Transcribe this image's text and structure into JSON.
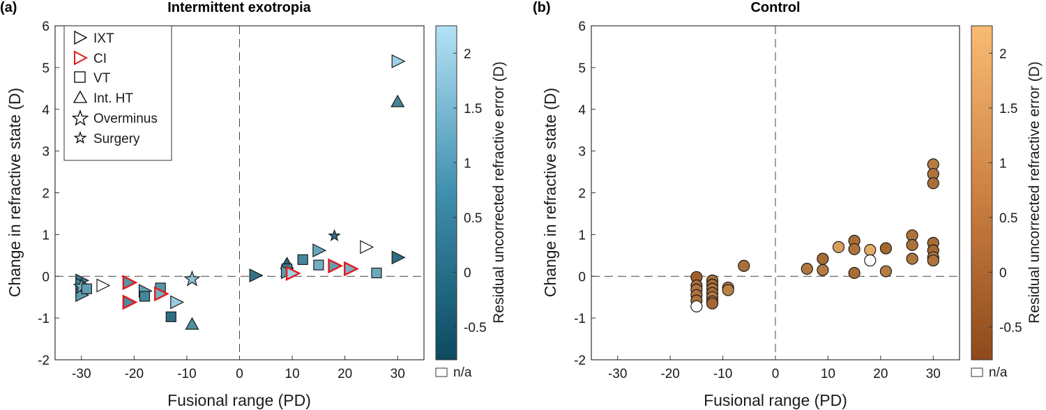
{
  "chart_data": [
    {
      "type": "scatter",
      "panel_label": "(a)",
      "title": "Intermittent exotropia",
      "xlabel": "Fusional range (PD)",
      "ylabel": "Change in refractive state (D)",
      "xlim": [
        -35,
        35
      ],
      "ylim": [
        -2,
        6
      ],
      "xticks": [
        -30,
        -20,
        -10,
        0,
        10,
        20,
        30
      ],
      "yticks": [
        -2,
        -1,
        0,
        1,
        2,
        3,
        4,
        5,
        6
      ],
      "colorbar": {
        "label": "Residual uncorrected refractive error (D)",
        "range": [
          -0.8,
          2.25
        ],
        "ticks": [
          -0.5,
          0,
          0.5,
          1,
          1.5,
          2
        ],
        "low_color": "#0c4a60",
        "high_color": "#b4e2f6",
        "na_label": "n/a"
      },
      "legend": {
        "position": "top-left",
        "entries": [
          {
            "label": "IXT",
            "marker": "triangle-right",
            "edge": "#000000"
          },
          {
            "label": "CI",
            "marker": "triangle-right",
            "edge": "#e31a1c"
          },
          {
            "label": "VT",
            "marker": "square",
            "edge": "#000000"
          },
          {
            "label": "Int. HT",
            "marker": "triangle-up",
            "edge": "#000000"
          },
          {
            "label": "Overminus",
            "marker": "star",
            "edge": "#000000"
          },
          {
            "label": "Surgery",
            "marker": "star-small",
            "edge": "#000000"
          }
        ]
      },
      "points": [
        {
          "x": -30,
          "y": -0.1,
          "marker": "tri",
          "c": 0.1
        },
        {
          "x": -30,
          "y": -0.2,
          "marker": "tri",
          "c": 0.3
        },
        {
          "x": -30,
          "y": -0.35,
          "marker": "tri",
          "c": 0.5
        },
        {
          "x": -30,
          "y": -0.45,
          "marker": "tri",
          "c": 0.8
        },
        {
          "x": -30,
          "y": -0.25,
          "marker": "star",
          "c": 1.3
        },
        {
          "x": -29,
          "y": -0.3,
          "marker": "sq",
          "c": 0.9
        },
        {
          "x": -26,
          "y": -0.22,
          "marker": "tri",
          "c": null
        },
        {
          "x": -21,
          "y": -0.15,
          "marker": "ci",
          "c": 0.7
        },
        {
          "x": -21,
          "y": -0.62,
          "marker": "ci",
          "c": 0.5
        },
        {
          "x": -18,
          "y": -0.35,
          "marker": "tri",
          "c": 0.9
        },
        {
          "x": -18,
          "y": -0.48,
          "marker": "sq",
          "c": 0.4
        },
        {
          "x": -15,
          "y": -0.28,
          "marker": "sq",
          "c": 0.7
        },
        {
          "x": -15,
          "y": -0.42,
          "marker": "ci",
          "c": 1.2
        },
        {
          "x": -12,
          "y": -0.62,
          "marker": "tri",
          "c": 1.8
        },
        {
          "x": -13,
          "y": -0.97,
          "marker": "sq",
          "c": -0.1
        },
        {
          "x": -9,
          "y": -0.07,
          "marker": "star",
          "c": 1.6
        },
        {
          "x": -9,
          "y": -1.15,
          "marker": "tri_up",
          "c": 0.6
        },
        {
          "x": 3,
          "y": 0.02,
          "marker": "tri",
          "c": 0.0
        },
        {
          "x": 9,
          "y": 0.3,
          "marker": "tri_up",
          "c": -0.2
        },
        {
          "x": 9,
          "y": 0.18,
          "marker": "sq",
          "c": 0.2
        },
        {
          "x": 9,
          "y": 0.1,
          "marker": "tri",
          "c": 0.8
        },
        {
          "x": 10,
          "y": 0.07,
          "marker": "ci",
          "c": 1.9
        },
        {
          "x": 12,
          "y": 0.4,
          "marker": "sq",
          "c": 0.4
        },
        {
          "x": 15,
          "y": 0.62,
          "marker": "tri",
          "c": 1.0
        },
        {
          "x": 15,
          "y": 0.27,
          "marker": "sq",
          "c": 1.2
        },
        {
          "x": 18,
          "y": 0.25,
          "marker": "ci",
          "c": 0.9
        },
        {
          "x": 18,
          "y": 0.97,
          "marker": "star_small",
          "c": -0.1
        },
        {
          "x": 21,
          "y": 0.18,
          "marker": "ci",
          "c": 1.3
        },
        {
          "x": 24,
          "y": 0.7,
          "marker": "tri",
          "c": null
        },
        {
          "x": 26,
          "y": 0.08,
          "marker": "sq",
          "c": 1.1
        },
        {
          "x": 30,
          "y": 0.45,
          "marker": "tri",
          "c": -0.1
        },
        {
          "x": 30,
          "y": 5.15,
          "marker": "tri",
          "c": 1.9
        },
        {
          "x": 30,
          "y": 4.18,
          "marker": "tri_up",
          "c": 0.4
        }
      ]
    },
    {
      "type": "scatter",
      "panel_label": "(b)",
      "title": "Control",
      "xlabel": "Fusional range (PD)",
      "ylabel": "Change in refractive state (D)",
      "xlim": [
        -35,
        35
      ],
      "ylim": [
        -2,
        6
      ],
      "xticks": [
        -30,
        -20,
        -10,
        0,
        10,
        20,
        30
      ],
      "yticks": [
        -2,
        -1,
        0,
        1,
        2,
        3,
        4,
        5,
        6
      ],
      "colorbar": {
        "label": "Residual uncorrected refractive error (D)",
        "range": [
          -0.8,
          2.25
        ],
        "ticks": [
          -0.5,
          0,
          0.5,
          1,
          1.5,
          2
        ],
        "low_color": "#8e4a1c",
        "high_color": "#f9bb74",
        "na_label": "n/a"
      },
      "points": [
        {
          "x": -15,
          "y": -0.02,
          "marker": "circle",
          "c": -0.2
        },
        {
          "x": -15,
          "y": -0.22,
          "marker": "circle",
          "c": 0.1
        },
        {
          "x": -15,
          "y": -0.32,
          "marker": "circle",
          "c": 0.4
        },
        {
          "x": -15,
          "y": -0.45,
          "marker": "circle",
          "c": 0.3
        },
        {
          "x": -15,
          "y": -0.58,
          "marker": "circle",
          "c": 0.2
        },
        {
          "x": -15,
          "y": -0.72,
          "marker": "circle",
          "c": null
        },
        {
          "x": -12,
          "y": -0.1,
          "marker": "circle",
          "c": 0.2
        },
        {
          "x": -12,
          "y": -0.2,
          "marker": "circle",
          "c": 0.0
        },
        {
          "x": -12,
          "y": -0.3,
          "marker": "circle",
          "c": 0.3
        },
        {
          "x": -12,
          "y": -0.4,
          "marker": "circle",
          "c": 0.1
        },
        {
          "x": -12,
          "y": -0.5,
          "marker": "circle",
          "c": 0.5
        },
        {
          "x": -12,
          "y": -0.6,
          "marker": "circle",
          "c": 0.2
        },
        {
          "x": -12,
          "y": -0.65,
          "marker": "circle",
          "c": 0.0
        },
        {
          "x": -9,
          "y": -0.27,
          "marker": "circle",
          "c": 0.5
        },
        {
          "x": -9,
          "y": -0.33,
          "marker": "circle",
          "c": 0.7
        },
        {
          "x": -6,
          "y": 0.25,
          "marker": "circle",
          "c": 0.2
        },
        {
          "x": 6,
          "y": 0.18,
          "marker": "circle",
          "c": 0.4
        },
        {
          "x": 9,
          "y": 0.42,
          "marker": "circle",
          "c": 0.1
        },
        {
          "x": 9,
          "y": 0.15,
          "marker": "circle",
          "c": 0.5
        },
        {
          "x": 12,
          "y": 0.7,
          "marker": "circle",
          "c": 1.5
        },
        {
          "x": 15,
          "y": 0.85,
          "marker": "circle",
          "c": 0.1
        },
        {
          "x": 15,
          "y": 0.65,
          "marker": "circle",
          "c": 0.3
        },
        {
          "x": 15,
          "y": 0.08,
          "marker": "circle",
          "c": 0.1
        },
        {
          "x": 18,
          "y": 0.63,
          "marker": "circle",
          "c": 1.8
        },
        {
          "x": 18,
          "y": 0.38,
          "marker": "circle",
          "c": null
        },
        {
          "x": 21,
          "y": 0.67,
          "marker": "circle",
          "c": 0.0
        },
        {
          "x": 21,
          "y": 0.12,
          "marker": "circle",
          "c": 0.5
        },
        {
          "x": 26,
          "y": 0.98,
          "marker": "circle",
          "c": 0.3
        },
        {
          "x": 26,
          "y": 0.75,
          "marker": "circle",
          "c": 0.2
        },
        {
          "x": 26,
          "y": 0.42,
          "marker": "circle",
          "c": 0.4
        },
        {
          "x": 30,
          "y": 2.68,
          "marker": "circle",
          "c": 0.5
        },
        {
          "x": 30,
          "y": 2.45,
          "marker": "circle",
          "c": 0.3
        },
        {
          "x": 30,
          "y": 2.23,
          "marker": "circle",
          "c": 0.2
        },
        {
          "x": 30,
          "y": 0.8,
          "marker": "circle",
          "c": 0.1
        },
        {
          "x": 30,
          "y": 0.62,
          "marker": "circle",
          "c": 0.0
        },
        {
          "x": 30,
          "y": 0.45,
          "marker": "circle",
          "c": 0.6
        },
        {
          "x": 30,
          "y": 0.38,
          "marker": "circle",
          "c": 0.3
        }
      ]
    }
  ]
}
